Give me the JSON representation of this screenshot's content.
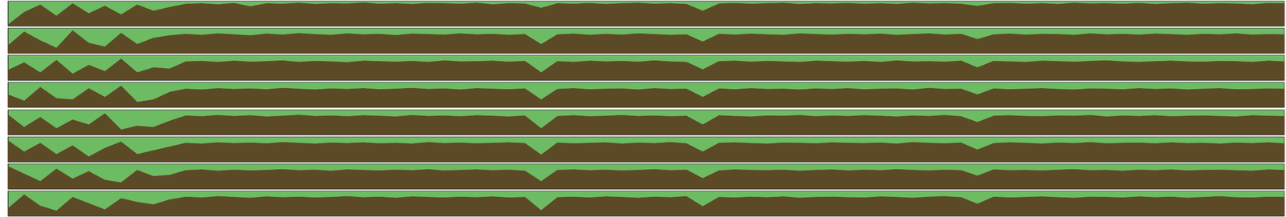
{
  "chart_data": {
    "type": "area",
    "x": [
      0,
      1,
      2,
      3,
      4,
      5,
      6,
      7,
      8,
      9,
      10,
      11,
      12,
      13,
      14,
      15,
      16,
      17,
      18,
      19,
      20,
      21,
      22,
      23,
      24,
      25,
      26,
      27,
      28,
      29,
      30,
      31,
      32,
      33,
      34,
      35,
      36,
      37,
      38,
      39,
      40,
      41,
      42,
      43,
      44,
      45,
      46,
      47,
      48,
      49,
      50,
      51,
      52,
      53,
      54,
      55,
      56,
      57,
      58,
      59,
      60,
      61,
      62,
      63,
      64,
      65,
      66,
      67,
      68,
      69,
      70,
      71,
      72,
      73,
      74,
      75,
      76,
      77,
      78,
      79
    ],
    "xlim": [
      0,
      79
    ],
    "ylim": [
      0,
      1
    ],
    "tick_labels": false,
    "grid": false,
    "series": [
      {
        "color": "#5c4a26",
        "values": [
          0.05,
          0.55,
          0.85,
          0.4,
          0.9,
          0.5,
          0.8,
          0.45,
          0.85,
          0.6,
          0.75,
          0.88,
          0.9,
          0.86,
          0.91,
          0.78,
          0.9,
          0.88,
          0.92,
          0.87,
          0.9,
          0.89,
          0.93,
          0.88,
          0.9,
          0.87,
          0.91,
          0.9,
          0.88,
          0.92,
          0.86,
          0.9,
          0.89,
          0.72,
          0.9,
          0.88,
          0.91,
          0.87,
          0.9,
          0.92,
          0.88,
          0.9,
          0.87,
          0.6,
          0.89,
          0.91,
          0.88,
          0.9,
          0.92,
          0.87,
          0.9,
          0.89,
          0.91,
          0.88,
          0.9,
          0.87,
          0.92,
          0.89,
          0.9,
          0.88,
          0.8,
          0.9,
          0.91,
          0.88,
          0.9,
          0.87,
          0.92,
          0.89,
          0.9,
          0.88,
          0.91,
          0.87,
          0.9,
          0.92,
          0.88,
          0.9,
          0.89,
          0.86,
          0.91,
          0.9
        ]
      },
      {
        "color": "#5c4a26",
        "values": [
          0.3,
          0.85,
          0.5,
          0.2,
          0.9,
          0.4,
          0.25,
          0.8,
          0.35,
          0.6,
          0.7,
          0.76,
          0.72,
          0.78,
          0.74,
          0.7,
          0.77,
          0.73,
          0.79,
          0.75,
          0.72,
          0.78,
          0.74,
          0.76,
          0.71,
          0.77,
          0.75,
          0.73,
          0.78,
          0.74,
          0.76,
          0.72,
          0.75,
          0.35,
          0.74,
          0.77,
          0.72,
          0.76,
          0.73,
          0.78,
          0.75,
          0.72,
          0.74,
          0.45,
          0.76,
          0.73,
          0.77,
          0.74,
          0.72,
          0.78,
          0.75,
          0.73,
          0.76,
          0.74,
          0.77,
          0.72,
          0.75,
          0.78,
          0.73,
          0.76,
          0.55,
          0.74,
          0.77,
          0.73,
          0.76,
          0.75,
          0.72,
          0.78,
          0.74,
          0.76,
          0.73,
          0.77,
          0.75,
          0.72,
          0.76,
          0.74,
          0.78,
          0.73,
          0.75,
          0.74
        ]
      },
      {
        "color": "#5c4a26",
        "values": [
          0.4,
          0.7,
          0.3,
          0.8,
          0.25,
          0.6,
          0.35,
          0.85,
          0.3,
          0.5,
          0.45,
          0.74,
          0.76,
          0.72,
          0.77,
          0.73,
          0.75,
          0.78,
          0.72,
          0.76,
          0.74,
          0.71,
          0.77,
          0.75,
          0.73,
          0.76,
          0.72,
          0.78,
          0.74,
          0.75,
          0.77,
          0.73,
          0.76,
          0.3,
          0.75,
          0.72,
          0.77,
          0.74,
          0.76,
          0.73,
          0.78,
          0.74,
          0.72,
          0.42,
          0.75,
          0.77,
          0.73,
          0.76,
          0.74,
          0.72,
          0.77,
          0.75,
          0.73,
          0.76,
          0.72,
          0.78,
          0.74,
          0.75,
          0.73,
          0.77,
          0.5,
          0.76,
          0.74,
          0.72,
          0.77,
          0.75,
          0.73,
          0.76,
          0.78,
          0.74,
          0.72,
          0.75,
          0.77,
          0.74,
          0.73,
          0.76,
          0.75,
          0.72,
          0.77,
          0.74
        ]
      },
      {
        "color": "#5c4a26",
        "values": [
          0.5,
          0.25,
          0.8,
          0.35,
          0.3,
          0.75,
          0.4,
          0.85,
          0.2,
          0.3,
          0.6,
          0.73,
          0.7,
          0.75,
          0.72,
          0.74,
          0.71,
          0.76,
          0.73,
          0.7,
          0.74,
          0.72,
          0.75,
          0.71,
          0.73,
          0.76,
          0.72,
          0.74,
          0.7,
          0.75,
          0.73,
          0.71,
          0.74,
          0.3,
          0.72,
          0.75,
          0.71,
          0.73,
          0.74,
          0.7,
          0.75,
          0.72,
          0.73,
          0.4,
          0.74,
          0.71,
          0.75,
          0.72,
          0.73,
          0.7,
          0.74,
          0.72,
          0.75,
          0.71,
          0.73,
          0.74,
          0.7,
          0.76,
          0.72,
          0.73,
          0.5,
          0.74,
          0.71,
          0.73,
          0.75,
          0.72,
          0.7,
          0.74,
          0.73,
          0.71,
          0.75,
          0.72,
          0.74,
          0.7,
          0.73,
          0.75,
          0.71,
          0.72,
          0.74,
          0.73
        ]
      },
      {
        "color": "#5c4a26",
        "values": [
          0.8,
          0.3,
          0.7,
          0.25,
          0.6,
          0.4,
          0.85,
          0.2,
          0.35,
          0.3,
          0.55,
          0.76,
          0.73,
          0.78,
          0.74,
          0.77,
          0.72,
          0.75,
          0.79,
          0.74,
          0.76,
          0.73,
          0.77,
          0.75,
          0.72,
          0.78,
          0.74,
          0.76,
          0.73,
          0.77,
          0.75,
          0.72,
          0.76,
          0.25,
          0.74,
          0.77,
          0.73,
          0.75,
          0.78,
          0.74,
          0.76,
          0.73,
          0.75,
          0.4,
          0.77,
          0.74,
          0.72,
          0.76,
          0.75,
          0.78,
          0.73,
          0.76,
          0.74,
          0.77,
          0.75,
          0.72,
          0.76,
          0.74,
          0.78,
          0.73,
          0.5,
          0.75,
          0.77,
          0.74,
          0.73,
          0.76,
          0.75,
          0.78,
          0.72,
          0.76,
          0.74,
          0.77,
          0.73,
          0.75,
          0.76,
          0.74,
          0.72,
          0.77,
          0.75,
          0.74
        ]
      },
      {
        "color": "#5c4a26",
        "values": [
          0.85,
          0.4,
          0.75,
          0.3,
          0.65,
          0.2,
          0.55,
          0.8,
          0.3,
          0.45,
          0.6,
          0.75,
          0.72,
          0.77,
          0.74,
          0.76,
          0.73,
          0.78,
          0.75,
          0.72,
          0.76,
          0.74,
          0.77,
          0.73,
          0.75,
          0.72,
          0.78,
          0.74,
          0.76,
          0.73,
          0.75,
          0.77,
          0.74,
          0.28,
          0.76,
          0.73,
          0.75,
          0.77,
          0.72,
          0.76,
          0.74,
          0.78,
          0.73,
          0.4,
          0.75,
          0.77,
          0.74,
          0.72,
          0.76,
          0.75,
          0.73,
          0.77,
          0.75,
          0.74,
          0.76,
          0.72,
          0.78,
          0.75,
          0.73,
          0.76,
          0.48,
          0.74,
          0.77,
          0.75,
          0.72,
          0.76,
          0.74,
          0.78,
          0.73,
          0.75,
          0.76,
          0.73,
          0.77,
          0.74,
          0.75,
          0.72,
          0.76,
          0.74,
          0.77,
          0.73
        ]
      },
      {
        "color": "#5c4a26",
        "values": [
          0.9,
          0.6,
          0.3,
          0.8,
          0.4,
          0.7,
          0.35,
          0.25,
          0.75,
          0.5,
          0.55,
          0.74,
          0.77,
          0.72,
          0.76,
          0.73,
          0.75,
          0.78,
          0.74,
          0.76,
          0.72,
          0.77,
          0.75,
          0.73,
          0.76,
          0.74,
          0.78,
          0.73,
          0.75,
          0.77,
          0.74,
          0.76,
          0.72,
          0.3,
          0.75,
          0.77,
          0.74,
          0.76,
          0.73,
          0.75,
          0.78,
          0.74,
          0.76,
          0.42,
          0.73,
          0.77,
          0.75,
          0.74,
          0.76,
          0.72,
          0.75,
          0.77,
          0.73,
          0.76,
          0.74,
          0.78,
          0.75,
          0.73,
          0.76,
          0.74,
          0.52,
          0.77,
          0.74,
          0.75,
          0.73,
          0.76,
          0.78,
          0.74,
          0.75,
          0.72,
          0.76,
          0.74,
          0.77,
          0.73,
          0.75,
          0.76,
          0.74,
          0.72,
          0.77,
          0.75
        ]
      },
      {
        "color": "#5c4a26",
        "values": [
          0.3,
          0.85,
          0.4,
          0.2,
          0.75,
          0.5,
          0.25,
          0.7,
          0.55,
          0.45,
          0.65,
          0.76,
          0.73,
          0.78,
          0.75,
          0.72,
          0.77,
          0.74,
          0.76,
          0.73,
          0.75,
          0.78,
          0.74,
          0.76,
          0.72,
          0.77,
          0.75,
          0.73,
          0.76,
          0.74,
          0.77,
          0.73,
          0.75,
          0.22,
          0.74,
          0.76,
          0.73,
          0.77,
          0.75,
          0.72,
          0.76,
          0.74,
          0.78,
          0.38,
          0.75,
          0.73,
          0.76,
          0.74,
          0.77,
          0.72,
          0.75,
          0.76,
          0.74,
          0.73,
          0.77,
          0.75,
          0.72,
          0.76,
          0.78,
          0.74,
          0.48,
          0.76,
          0.73,
          0.75,
          0.77,
          0.74,
          0.72,
          0.76,
          0.75,
          0.73,
          0.77,
          0.74,
          0.76,
          0.72,
          0.75,
          0.78,
          0.74,
          0.73,
          0.76,
          0.75
        ]
      }
    ]
  }
}
